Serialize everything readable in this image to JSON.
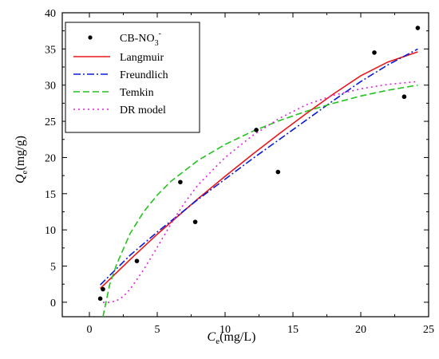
{
  "chart_data": {
    "type": "scatter",
    "title": "",
    "xlabel": {
      "main": "C",
      "sub": "e",
      "unit": "(mg/L)"
    },
    "ylabel": {
      "main": "Q",
      "sub": "e",
      "unit": "(mg/g)"
    },
    "xlim": [
      -2,
      25
    ],
    "ylim": [
      -2,
      40
    ],
    "xticks": [
      0,
      5,
      10,
      15,
      20,
      25
    ],
    "yticks": [
      0,
      5,
      10,
      15,
      20,
      25,
      30,
      35,
      40
    ],
    "grid": false,
    "legend_position": "top-left",
    "scatter_series": {
      "name": "CB-NO",
      "name_sub": "3",
      "name_sup": "-",
      "color": "#000000",
      "x": [
        0.8,
        1.0,
        3.5,
        6.7,
        7.8,
        12.3,
        13.9,
        21.0,
        23.2,
        24.2
      ],
      "y": [
        0.5,
        1.8,
        5.7,
        16.6,
        11.1,
        23.8,
        18.0,
        34.5,
        28.4,
        37.9
      ]
    },
    "series": [
      {
        "name": "Langmuir",
        "color": "#e8171b",
        "dash": "solid",
        "x": [
          0.8,
          3,
          5,
          8,
          10,
          12,
          14,
          16,
          18,
          20,
          22,
          24.2
        ],
        "y": [
          1.9,
          5.9,
          9.4,
          14.3,
          17.4,
          20.4,
          23.3,
          26.1,
          28.8,
          31.3,
          33.2,
          34.6
        ]
      },
      {
        "name": "Freundlich",
        "color": "#0a1dd8",
        "dash": "dashdot",
        "x": [
          0.8,
          3,
          5,
          8,
          10,
          12,
          14,
          16,
          18,
          20,
          22,
          24.2
        ],
        "y": [
          2.4,
          6.5,
          9.7,
          14.2,
          17.0,
          19.8,
          22.5,
          25.2,
          27.9,
          30.5,
          32.8,
          35.0
        ]
      },
      {
        "name": "Temkin",
        "color": "#22c21e",
        "dash": "dash",
        "x": [
          1.0,
          1.5,
          2,
          3,
          4,
          5,
          6,
          8,
          10,
          12,
          14,
          16,
          18,
          20,
          22,
          24.2
        ],
        "y": [
          -2.0,
          2.5,
          5.2,
          9.5,
          12.5,
          14.8,
          16.7,
          19.6,
          21.8,
          23.6,
          25.1,
          26.4,
          27.5,
          28.5,
          29.3,
          30.0
        ]
      },
      {
        "name": "DR model",
        "color": "#e020e0",
        "dash": "dot",
        "x": [
          1.0,
          1.5,
          2,
          2.5,
          3,
          4,
          5,
          6,
          7,
          8,
          10,
          12,
          14,
          16,
          18,
          20,
          22,
          24.2
        ],
        "y": [
          0.0,
          0.0,
          0.2,
          0.8,
          1.8,
          4.5,
          7.6,
          10.8,
          13.7,
          16.2,
          20.0,
          23.0,
          25.4,
          27.3,
          28.6,
          29.5,
          30.1,
          30.5
        ]
      }
    ]
  }
}
